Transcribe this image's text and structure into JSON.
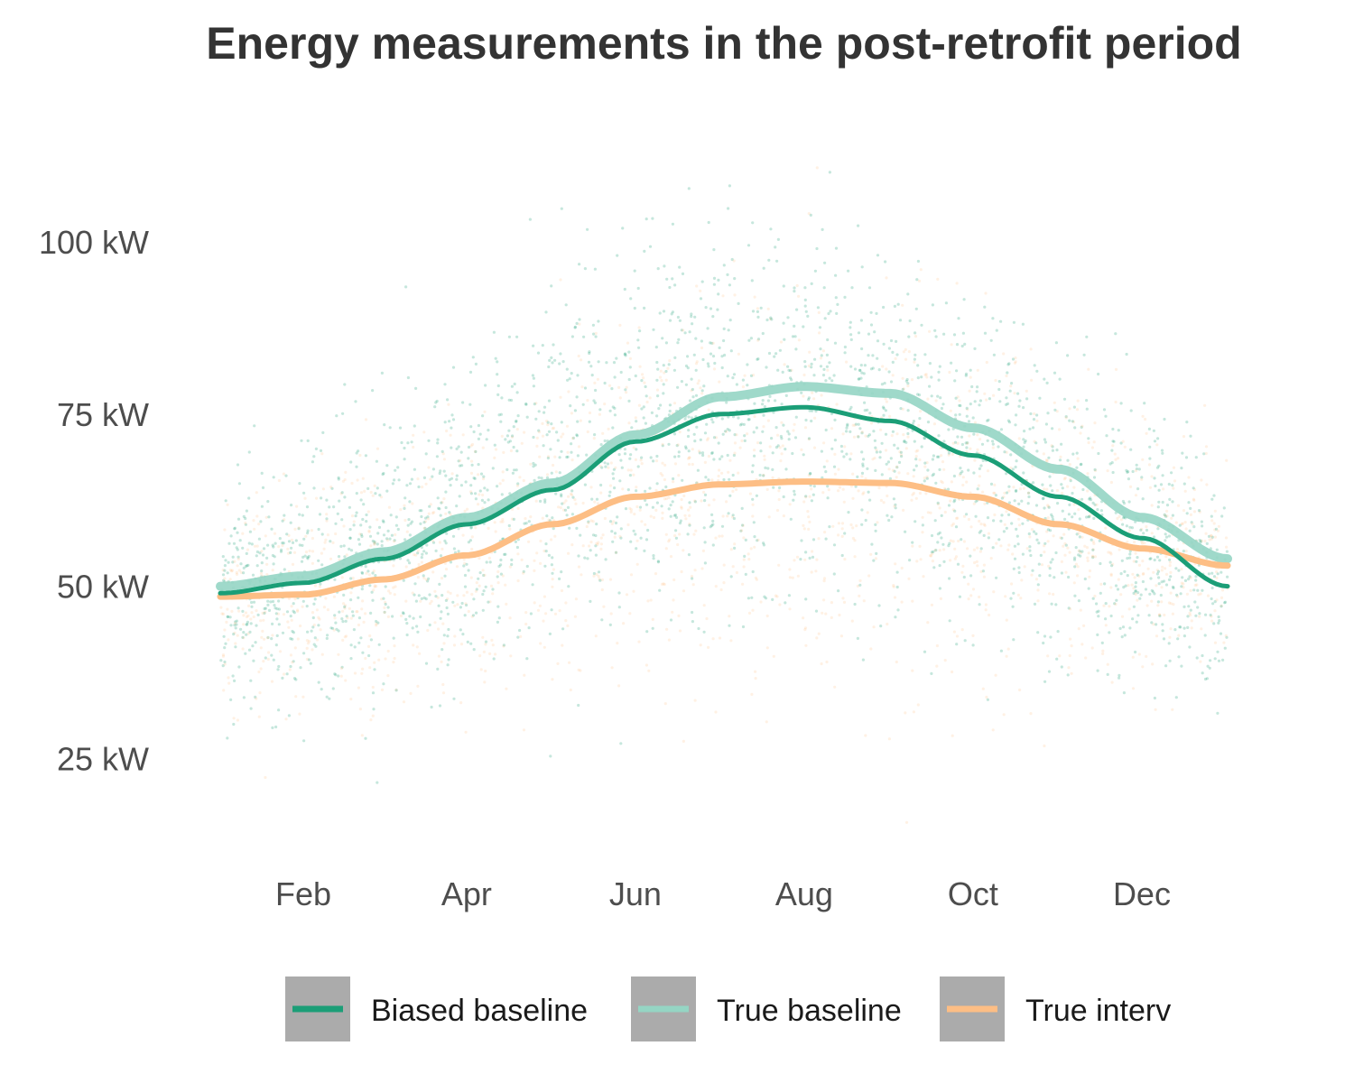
{
  "chart_data": {
    "type": "line",
    "title": "Energy measurements in the post-retrofit period",
    "xlabel": "",
    "ylabel": "",
    "x_ticks": [
      "Feb",
      "Apr",
      "Jun",
      "Aug",
      "Oct",
      "Dec"
    ],
    "x_tick_days": [
      31,
      90,
      151,
      212,
      273,
      334
    ],
    "xlim": [
      1,
      365
    ],
    "y_ticks": [
      "25 kW",
      "50 kW",
      "75 kW",
      "100 kW"
    ],
    "y_tick_values": [
      25,
      50,
      75,
      100
    ],
    "ylim": [
      10,
      122
    ],
    "grid": false,
    "legend_position": "bottom",
    "series": [
      {
        "name": "Biased baseline",
        "color": "#1b9e77",
        "x": [
          1,
          31,
          60,
          90,
          121,
          151,
          182,
          212,
          243,
          273,
          304,
          334,
          365
        ],
        "y": [
          49,
          50.5,
          54,
          59,
          64,
          71,
          75,
          76,
          74,
          69,
          63,
          57,
          50
        ]
      },
      {
        "name": "True baseline",
        "color": "#95d5c4",
        "x": [
          1,
          31,
          60,
          90,
          121,
          151,
          182,
          212,
          243,
          273,
          304,
          334,
          365
        ],
        "y": [
          50,
          51.5,
          55,
          60,
          65,
          72,
          77.5,
          79,
          78,
          73,
          67,
          60,
          54
        ]
      },
      {
        "name": "True interv",
        "color": "#fdbe85",
        "x": [
          1,
          31,
          60,
          90,
          121,
          151,
          182,
          212,
          243,
          273,
          304,
          334,
          365
        ],
        "y": [
          48.5,
          48.8,
          51,
          54.5,
          59,
          63,
          64.8,
          65.2,
          65,
          63,
          59,
          55.5,
          53
        ]
      }
    ],
    "scatter_note_colors": [
      "#1b9e77",
      "#fdbe85"
    ]
  }
}
